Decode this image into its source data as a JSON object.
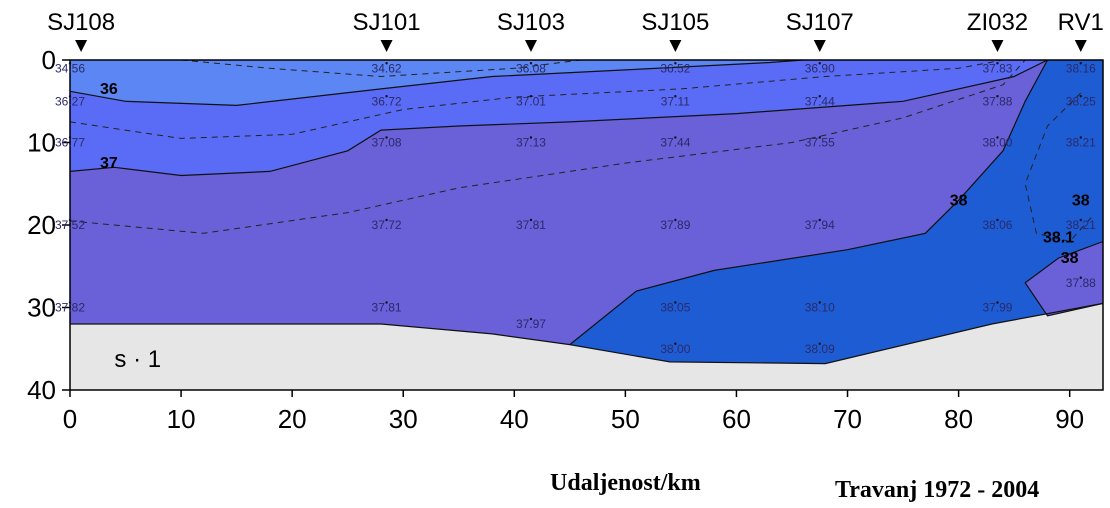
{
  "chart_data": {
    "type": "heatmap",
    "title": "",
    "xlabel": "Udaljenost/km",
    "ylabel": "",
    "variable_label": "s · 1",
    "period_label": "Travanj   1972 - 2004",
    "xlim": [
      0,
      93
    ],
    "ylim": [
      40,
      0
    ],
    "x_ticks": [
      0,
      10,
      20,
      30,
      40,
      50,
      60,
      70,
      80,
      90
    ],
    "y_ticks": [
      0,
      10,
      20,
      30,
      40
    ],
    "stations": [
      {
        "name": "SJ108",
        "x": 1
      },
      {
        "name": "SJ101",
        "x": 28.5
      },
      {
        "name": "SJ103",
        "x": 41.5
      },
      {
        "name": "SJ105",
        "x": 54.5
      },
      {
        "name": "SJ107",
        "x": 67.5
      },
      {
        "name": "ZI032",
        "x": 83.5
      },
      {
        "name": "RV1",
        "x": 91
      }
    ],
    "samples": [
      {
        "x": 0,
        "depth": 1,
        "value": "34.56"
      },
      {
        "x": 0,
        "depth": 5,
        "value": "36.27"
      },
      {
        "x": 0,
        "depth": 10,
        "value": "36.77"
      },
      {
        "x": 0,
        "depth": 20,
        "value": "37.52"
      },
      {
        "x": 0,
        "depth": 30,
        "value": "37.82"
      },
      {
        "x": 28.5,
        "depth": 1,
        "value": "34.62"
      },
      {
        "x": 28.5,
        "depth": 5,
        "value": "36.72"
      },
      {
        "x": 28.5,
        "depth": 10,
        "value": "37.08"
      },
      {
        "x": 28.5,
        "depth": 20,
        "value": "37.72"
      },
      {
        "x": 28.5,
        "depth": 30,
        "value": "37.81"
      },
      {
        "x": 41.5,
        "depth": 1,
        "value": "36.08"
      },
      {
        "x": 41.5,
        "depth": 5,
        "value": "37.01"
      },
      {
        "x": 41.5,
        "depth": 10,
        "value": "37.13"
      },
      {
        "x": 41.5,
        "depth": 20,
        "value": "37.81"
      },
      {
        "x": 41.5,
        "depth": 32,
        "value": "37.97"
      },
      {
        "x": 54.5,
        "depth": 1,
        "value": "36.52"
      },
      {
        "x": 54.5,
        "depth": 5,
        "value": "37.11"
      },
      {
        "x": 54.5,
        "depth": 10,
        "value": "37.44"
      },
      {
        "x": 54.5,
        "depth": 20,
        "value": "37.89"
      },
      {
        "x": 54.5,
        "depth": 30,
        "value": "38.05"
      },
      {
        "x": 54.5,
        "depth": 35,
        "value": "38.00"
      },
      {
        "x": 67.5,
        "depth": 1,
        "value": "36.90"
      },
      {
        "x": 67.5,
        "depth": 5,
        "value": "37.44"
      },
      {
        "x": 67.5,
        "depth": 10,
        "value": "37.55"
      },
      {
        "x": 67.5,
        "depth": 20,
        "value": "37.94"
      },
      {
        "x": 67.5,
        "depth": 30,
        "value": "38.10"
      },
      {
        "x": 67.5,
        "depth": 35,
        "value": "38.09"
      },
      {
        "x": 83.5,
        "depth": 1,
        "value": "37.83"
      },
      {
        "x": 83.5,
        "depth": 5,
        "value": "37.88"
      },
      {
        "x": 83.5,
        "depth": 10,
        "value": "38.00"
      },
      {
        "x": 83.5,
        "depth": 20,
        "value": "38.06"
      },
      {
        "x": 83.5,
        "depth": 30,
        "value": "37.99"
      },
      {
        "x": 91,
        "depth": 1,
        "value": "38.16"
      },
      {
        "x": 91,
        "depth": 5,
        "value": "38.25"
      },
      {
        "x": 91,
        "depth": 10,
        "value": "38.21"
      },
      {
        "x": 91,
        "depth": 20,
        "value": "38.21"
      },
      {
        "x": 91,
        "depth": 27,
        "value": "37.88"
      }
    ],
    "contour_labels": [
      {
        "text": "36",
        "x": 3.5,
        "depth": 3.5
      },
      {
        "text": "37",
        "x": 3.5,
        "depth": 12.5
      },
      {
        "text": "38",
        "x": 80,
        "depth": 17
      },
      {
        "text": "38",
        "x": 91,
        "depth": 17
      },
      {
        "text": "38.1",
        "x": 89,
        "depth": 21.5
      },
      {
        "text": "38",
        "x": 90,
        "depth": 24
      }
    ],
    "bands": [
      {
        "level": "<36",
        "color": "#5c86f3"
      },
      {
        "level": "36-37",
        "color": "#5a6cf5"
      },
      {
        "level": "37-38",
        "color": "#6a60d8"
      },
      {
        "level": ">38",
        "color": "#1e5cd4"
      }
    ],
    "seabed_color": "#e6e6e6"
  }
}
